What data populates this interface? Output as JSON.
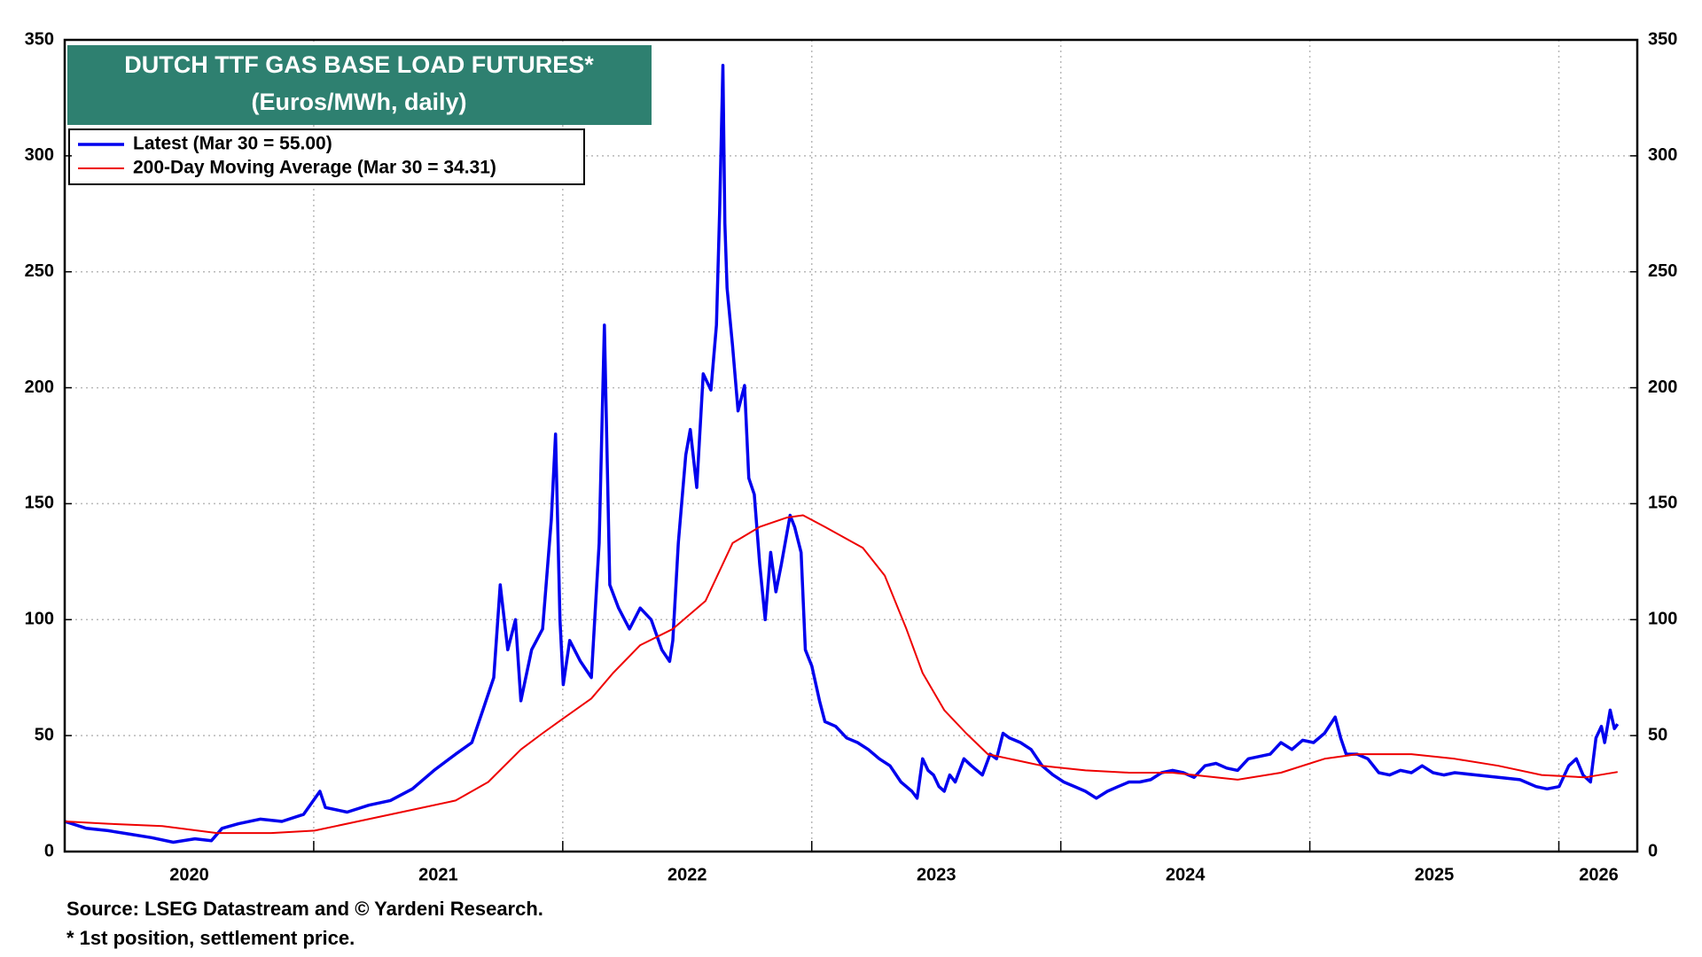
{
  "chart_data": {
    "type": "line",
    "title": "DUTCH TTF GAS BASE LOAD FUTURES*",
    "subtitle": "(Euros/MWh, daily)",
    "source": "Source: LSEG Datastream and © Yardeni Research.",
    "note": "* 1st position, settlement price.",
    "xlim": [
      2020,
      2026.315
    ],
    "xticks": [
      {
        "value": 2020.5,
        "label": "2020"
      },
      {
        "value": 2021.5,
        "label": "2021"
      },
      {
        "value": 2022.5,
        "label": "2022"
      },
      {
        "value": 2023.5,
        "label": "2023"
      },
      {
        "value": 2024.5,
        "label": "2024"
      },
      {
        "value": 2025.5,
        "label": "2025"
      },
      {
        "value": 2026.16,
        "label": "2026"
      }
    ],
    "xgrid": [
      2021,
      2022,
      2023,
      2024,
      2025,
      2026
    ],
    "ylim": [
      0,
      350
    ],
    "yticks": [
      0,
      50,
      100,
      150,
      200,
      250,
      300,
      350
    ],
    "y2lim": [
      0,
      350
    ],
    "y2ticks": [
      0,
      50,
      100,
      150,
      200,
      250,
      300,
      350
    ],
    "grid": true,
    "legend": "upper left",
    "series": [
      {
        "name": "Latest (Mar 30 = 55.00)",
        "color": "#0000ee",
        "x": [
          2020.0,
          2020.087,
          2020.174,
          2020.262,
          2020.349,
          2020.436,
          2020.523,
          2020.589,
          2020.632,
          2020.698,
          2020.785,
          2020.872,
          2020.959,
          2021.025,
          2021.047,
          2021.134,
          2021.221,
          2021.308,
          2021.396,
          2021.483,
          2021.57,
          2021.635,
          2021.679,
          2021.723,
          2021.749,
          2021.779,
          2021.81,
          2021.832,
          2021.875,
          2021.919,
          2021.954,
          2021.971,
          2021.989,
          2022.002,
          2022.028,
          2022.071,
          2022.115,
          2022.146,
          2022.167,
          2022.189,
          2022.224,
          2022.268,
          2022.311,
          2022.355,
          2022.398,
          2022.429,
          2022.442,
          2022.464,
          2022.494,
          2022.512,
          2022.538,
          2022.564,
          2022.595,
          2022.617,
          2022.63,
          2022.643,
          2022.651,
          2022.66,
          2022.682,
          2022.704,
          2022.73,
          2022.747,
          2022.769,
          2022.791,
          2022.813,
          2022.835,
          2022.856,
          2022.878,
          2022.913,
          2022.931,
          2022.957,
          2022.974,
          2023.0,
          2023.031,
          2023.053,
          2023.096,
          2023.14,
          2023.184,
          2023.227,
          2023.271,
          2023.314,
          2023.358,
          2023.402,
          2023.423,
          2023.445,
          2023.467,
          2023.489,
          2023.511,
          2023.532,
          2023.554,
          2023.576,
          2023.611,
          2023.641,
          2023.685,
          2023.716,
          2023.742,
          2023.768,
          2023.794,
          2023.838,
          2023.881,
          2023.925,
          2023.969,
          2024.012,
          2024.056,
          2024.099,
          2024.143,
          2024.187,
          2024.23,
          2024.274,
          2024.317,
          2024.361,
          2024.405,
          2024.448,
          2024.492,
          2024.535,
          2024.579,
          2024.623,
          2024.666,
          2024.71,
          2024.753,
          2024.797,
          2024.841,
          2024.884,
          2024.928,
          2024.971,
          2025.015,
          2025.059,
          2025.102,
          2025.124,
          2025.146,
          2025.19,
          2025.233,
          2025.277,
          2025.32,
          2025.364,
          2025.408,
          2025.451,
          2025.495,
          2025.538,
          2025.582,
          2025.669,
          2025.757,
          2025.844,
          2025.909,
          2025.953,
          2026.001,
          2026.04,
          2026.07,
          2026.097,
          2026.127,
          2026.149,
          2026.171,
          2026.184,
          2026.206,
          2026.223,
          2026.236
        ],
        "values": [
          13,
          10,
          9,
          7.5,
          6,
          4,
          5.5,
          4.7,
          10,
          12,
          14,
          13,
          16,
          26,
          19,
          17,
          20,
          22,
          27,
          35,
          42,
          47,
          61,
          75,
          115,
          87,
          100,
          65,
          87,
          96,
          143,
          180,
          100,
          72,
          91,
          82,
          75,
          133,
          227,
          115,
          105,
          96,
          105,
          100,
          87,
          82,
          91,
          133,
          171,
          182,
          157,
          206,
          199,
          227,
          276,
          339,
          271,
          243,
          218,
          190,
          201,
          161,
          154,
          124,
          100,
          129,
          112,
          124,
          145,
          140,
          129,
          87,
          80,
          65,
          56,
          54,
          49,
          47,
          44,
          40,
          37,
          30,
          26,
          23,
          40,
          35,
          33,
          28,
          26,
          33,
          30,
          40,
          37,
          33,
          42,
          40,
          51,
          49,
          47,
          44,
          37,
          33,
          30,
          28,
          26,
          23,
          26,
          28,
          30,
          30,
          31,
          34,
          35,
          34,
          32,
          37,
          38,
          36,
          35,
          40,
          41,
          42,
          47,
          44,
          48,
          47,
          51,
          58,
          49,
          42,
          42,
          40,
          34,
          33,
          35,
          34,
          37,
          34,
          33,
          34,
          33,
          32,
          31,
          28,
          27,
          28,
          37,
          40,
          33,
          30,
          49,
          54,
          47,
          61,
          53,
          55
        ]
      },
      {
        "name": "200-Day Moving Average (Mar 30 = 34.31)",
        "color": "#ee0000",
        "x": [
          2020.0,
          2020.174,
          2020.392,
          2020.611,
          2020.829,
          2021.003,
          2021.177,
          2021.396,
          2021.57,
          2021.701,
          2021.832,
          2021.919,
          2021.984,
          2022.115,
          2022.202,
          2022.311,
          2022.442,
          2022.573,
          2022.682,
          2022.791,
          2022.9,
          2022.965,
          2023.053,
          2023.205,
          2023.293,
          2023.38,
          2023.445,
          2023.532,
          2023.62,
          2023.707,
          2023.794,
          2023.925,
          2024.099,
          2024.274,
          2024.448,
          2024.71,
          2024.884,
          2025.059,
          2025.19,
          2025.408,
          2025.582,
          2025.757,
          2025.931,
          2026.105,
          2026.236
        ],
        "values": [
          13,
          12,
          11,
          8,
          8,
          9,
          13,
          18,
          22,
          30,
          44,
          51,
          56,
          66,
          77,
          89,
          96,
          108,
          133,
          140,
          144,
          145,
          140,
          131,
          119,
          96,
          77,
          61,
          51,
          42,
          40,
          37,
          35,
          34,
          34,
          31,
          34,
          40,
          42,
          42,
          40,
          37,
          33,
          32,
          34.31
        ]
      }
    ]
  }
}
